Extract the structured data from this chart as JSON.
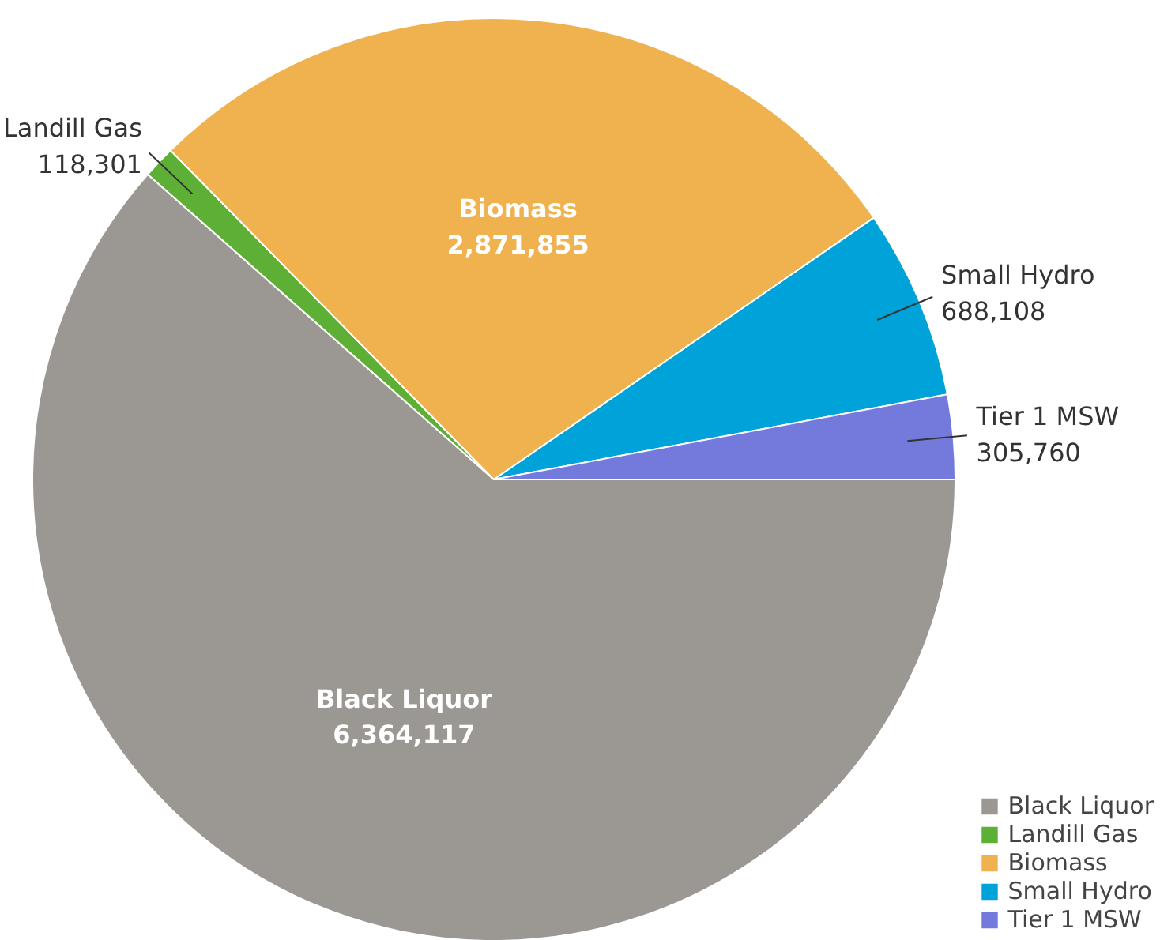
{
  "chart_data": {
    "type": "pie",
    "categories": [
      "Black Liquor",
      "Landill Gas",
      "Biomass",
      "Small Hydro",
      "Tier 1 MSW"
    ],
    "values": [
      6364117,
      118301,
      2871855,
      688108,
      305760
    ],
    "colors": [
      "#9b9893",
      "#5db035",
      "#efb24f",
      "#00a3d9",
      "#7479dc"
    ],
    "value_labels": [
      "6,364,117",
      "118,301",
      "2,871,855",
      "688,108",
      "305,760"
    ],
    "legend": "bottom right"
  }
}
